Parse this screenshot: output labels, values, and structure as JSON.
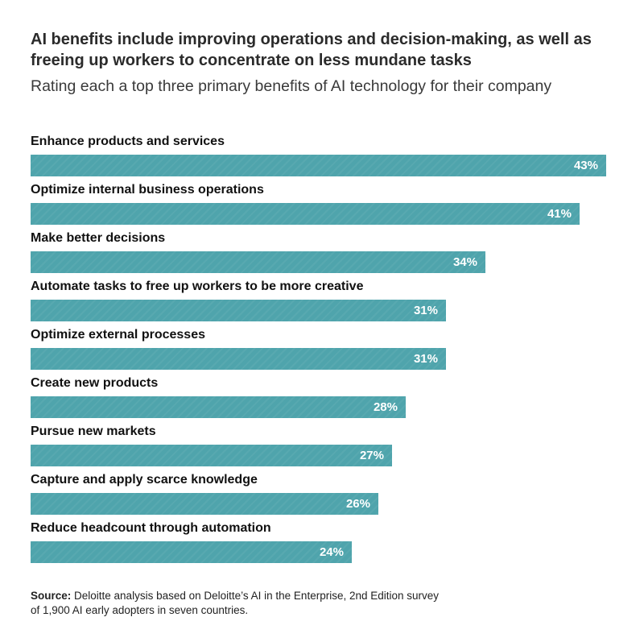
{
  "chart_data": {
    "type": "bar",
    "orientation": "horizontal",
    "title": "AI benefits include improving operations and decision-making, as well as freeing up workers to concentrate on less mundane tasks",
    "subtitle": "Rating each a top three primary benefits of AI technology for their company",
    "categories": [
      "Enhance products and services",
      "Optimize internal business operations",
      "Make better decisions",
      "Automate tasks to free up workers to be more creative",
      "Optimize external processes",
      "Create new products",
      "Pursue new markets",
      "Capture and apply scarce knowledge",
      "Reduce headcount through automation"
    ],
    "values": [
      43,
      41,
      34,
      31,
      31,
      28,
      27,
      26,
      24
    ],
    "value_labels": [
      "43%",
      "41%",
      "34%",
      "31%",
      "31%",
      "28%",
      "27%",
      "26%",
      "24%"
    ],
    "unit": "%",
    "xlim": [
      0,
      44.5
    ],
    "bar_color": "#4fa4ac",
    "xlabel": "",
    "ylabel": ""
  },
  "source": {
    "label": "Source:",
    "text": " Deloitte analysis based on Deloitte’s AI in the Enterprise, 2nd Edition survey of 1,900 AI early adopters in seven countries."
  }
}
